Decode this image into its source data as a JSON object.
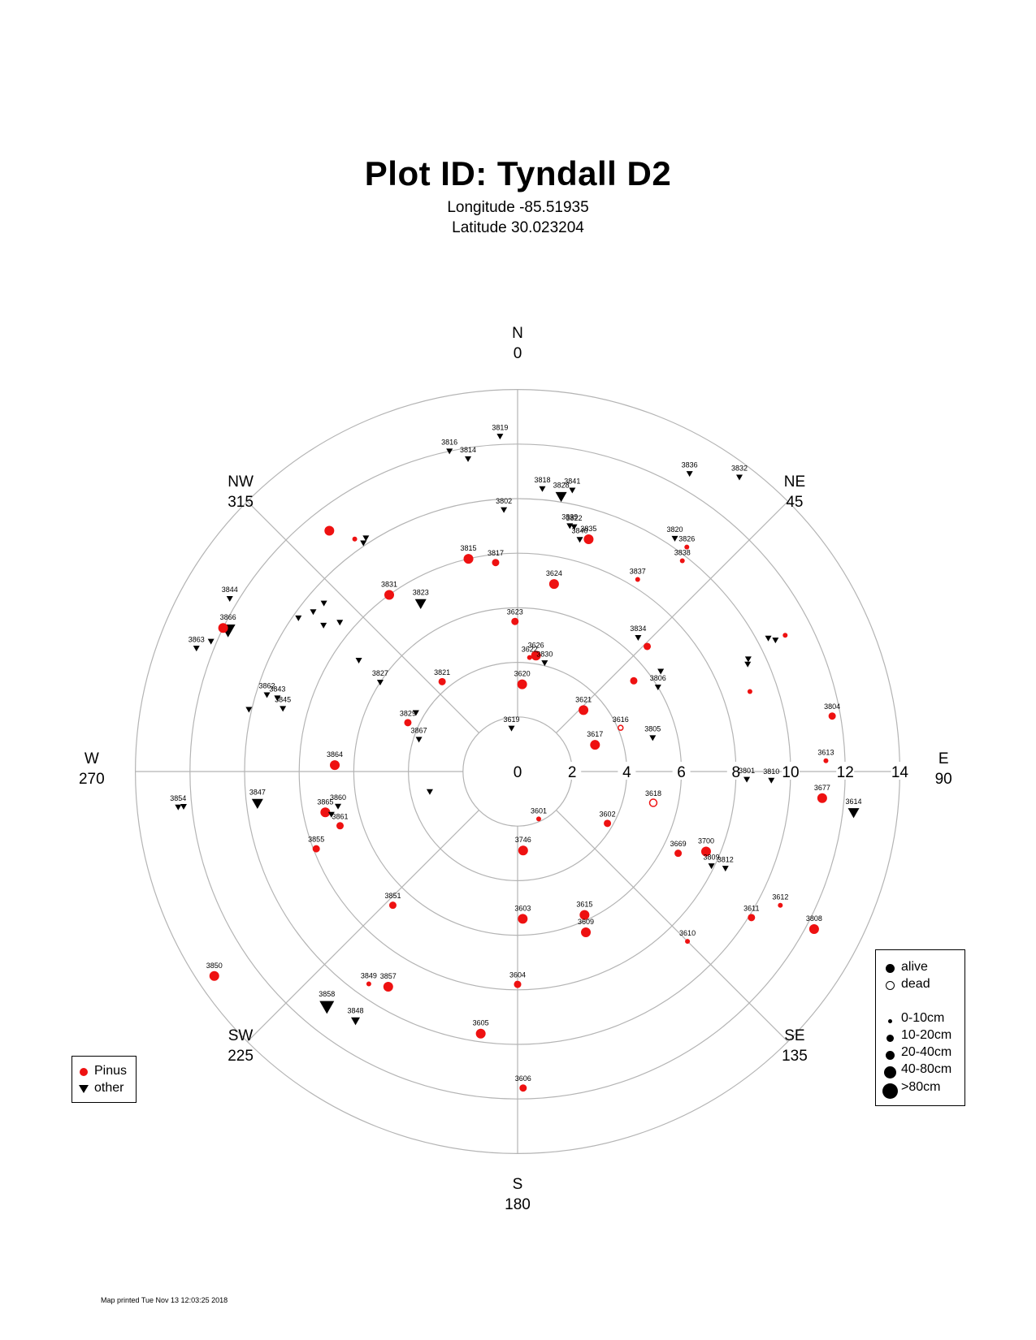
{
  "header": {
    "title": "Plot ID:  Tyndall D2",
    "longitude": "Longitude -85.51935",
    "latitude": "Latitude 30.023204"
  },
  "footer": "Map printed Tue Nov 13 12:03:25 2018",
  "colors": {
    "pinus": "#ee1111",
    "other": "#000000",
    "grid": "#b4b4b4"
  },
  "legend_species": [
    {
      "label": "Pinus",
      "symbol": "circle",
      "color": "#ee1111"
    },
    {
      "label": "other",
      "symbol": "triangle-down",
      "color": "#000000"
    }
  ],
  "legend_status": [
    {
      "label": "alive",
      "symbol": "filled-circle"
    },
    {
      "label": "dead",
      "symbol": "open-circle"
    }
  ],
  "legend_size": [
    "0-10cm",
    "10-20cm",
    "20-40cm",
    "40-80cm",
    ">80cm"
  ],
  "chart_data": {
    "type": "scatter",
    "coordinate_system": "polar",
    "radius_range": [
      0,
      14
    ],
    "radial_ticks": [
      "0",
      "2",
      "4",
      "6",
      "8",
      "10",
      "12",
      "14"
    ],
    "directions": [
      {
        "label": "N",
        "angle": "0",
        "deg": 0
      },
      {
        "label": "NE",
        "angle": "45",
        "deg": 45
      },
      {
        "label": "E",
        "angle": "90",
        "deg": 90
      },
      {
        "label": "SE",
        "angle": "135",
        "deg": 135
      },
      {
        "label": "S",
        "angle": "180",
        "deg": 180
      },
      {
        "label": "SW",
        "angle": "225",
        "deg": 225
      },
      {
        "label": "W",
        "angle": "270",
        "deg": 270
      },
      {
        "label": "NW",
        "angle": "315",
        "deg": 315
      }
    ],
    "trees": [
      {
        "id": "3619",
        "species": "other",
        "status": "alive",
        "size": 1,
        "az": 352,
        "dist": 1.6
      },
      {
        "id": "3620",
        "species": "Pinus",
        "status": "alive",
        "size": 3,
        "az": 3,
        "dist": 3.2
      },
      {
        "id": "3621",
        "species": "Pinus",
        "status": "alive",
        "size": 3,
        "az": 47,
        "dist": 3.3
      },
      {
        "id": "3617",
        "species": "Pinus",
        "status": "alive",
        "size": 3,
        "az": 71,
        "dist": 3.0
      },
      {
        "id": "3616",
        "species": "Pinus",
        "status": "dead",
        "size": 1,
        "az": 67,
        "dist": 4.1
      },
      {
        "id": "3626",
        "species": "Pinus",
        "status": "alive",
        "size": 3,
        "az": 9,
        "dist": 4.3
      },
      {
        "id": "3830",
        "species": "other",
        "status": "alive",
        "size": 1,
        "az": 14,
        "dist": 4.1
      },
      {
        "id": "3622",
        "species": "Pinus",
        "status": "alive",
        "size": 1,
        "az": 6,
        "dist": 4.2
      },
      {
        "id": "3623",
        "species": "Pinus",
        "status": "alive",
        "size": 2,
        "az": 359,
        "dist": 5.5
      },
      {
        "id": "3624",
        "species": "Pinus",
        "status": "alive",
        "size": 3,
        "az": 11,
        "dist": 7.0
      },
      {
        "id": "3821",
        "species": "Pinus",
        "status": "alive",
        "size": 2,
        "az": 320,
        "dist": 4.3
      },
      {
        "id": "3829",
        "species": "Pinus",
        "status": "alive",
        "size": 2,
        "az": 294,
        "dist": 4.4
      },
      {
        "id": "3867",
        "species": "other",
        "status": "alive",
        "size": 1,
        "az": 288,
        "dist": 3.8
      },
      {
        "id": "",
        "species": "other",
        "status": "alive",
        "size": 1,
        "az": 300,
        "dist": 4.3
      },
      {
        "id": "",
        "species": "other",
        "status": "alive",
        "size": 1,
        "az": 257,
        "dist": 3.3
      },
      {
        "id": "3601",
        "species": "Pinus",
        "status": "alive",
        "size": 1,
        "az": 156,
        "dist": 1.9
      },
      {
        "id": "3746",
        "species": "Pinus",
        "status": "alive",
        "size": 3,
        "az": 176,
        "dist": 2.9
      },
      {
        "id": "3602",
        "species": "Pinus",
        "status": "alive",
        "size": 2,
        "az": 120,
        "dist": 3.8
      },
      {
        "id": "3618",
        "species": "Pinus",
        "status": "dead",
        "size": 2,
        "az": 103,
        "dist": 5.1
      },
      {
        "id": "3805",
        "species": "other",
        "status": "alive",
        "size": 1,
        "az": 76,
        "dist": 5.1
      },
      {
        "id": "3806",
        "species": "other",
        "status": "alive",
        "size": 1,
        "az": 59,
        "dist": 6.0
      },
      {
        "id": "",
        "species": "Pinus",
        "status": "alive",
        "size": 2,
        "az": 52,
        "dist": 5.4
      },
      {
        "id": "",
        "species": "other",
        "status": "alive",
        "size": 1,
        "az": 55,
        "dist": 6.4
      },
      {
        "id": "3834",
        "species": "other",
        "status": "alive",
        "size": 1,
        "az": 42,
        "dist": 6.6
      },
      {
        "id": "",
        "species": "Pinus",
        "status": "alive",
        "size": 2,
        "az": 46,
        "dist": 6.6
      },
      {
        "id": "3837",
        "species": "Pinus",
        "status": "alive",
        "size": 1,
        "az": 32,
        "dist": 8.3
      },
      {
        "id": "3815",
        "species": "Pinus",
        "status": "alive",
        "size": 3,
        "az": 347,
        "dist": 8.0
      },
      {
        "id": "3817",
        "species": "Pinus",
        "status": "alive",
        "size": 2,
        "az": 354,
        "dist": 7.7
      },
      {
        "id": "3802",
        "species": "other",
        "status": "alive",
        "size": 1,
        "az": 357,
        "dist": 9.6
      },
      {
        "id": "3831",
        "species": "Pinus",
        "status": "alive",
        "size": 3,
        "az": 324,
        "dist": 8.0
      },
      {
        "id": "3823",
        "species": "other",
        "status": "alive",
        "size": 3,
        "az": 330,
        "dist": 7.1
      },
      {
        "id": "3827",
        "species": "other",
        "status": "alive",
        "size": 1,
        "az": 303,
        "dist": 6.0
      },
      {
        "id": "",
        "species": "other",
        "status": "alive",
        "size": 1,
        "az": 305,
        "dist": 7.1
      },
      {
        "id": "",
        "species": "other",
        "status": "alive",
        "size": 1,
        "az": 310,
        "dist": 8.5
      },
      {
        "id": "",
        "species": "other",
        "status": "alive",
        "size": 1,
        "az": 307,
        "dist": 8.9
      },
      {
        "id": "",
        "species": "other",
        "status": "alive",
        "size": 1,
        "az": 308,
        "dist": 9.5
      },
      {
        "id": "",
        "species": "other",
        "status": "alive",
        "size": 1,
        "az": 305,
        "dist": 9.8
      },
      {
        "id": "",
        "species": "other",
        "status": "alive",
        "size": 1,
        "az": 311,
        "dist": 9.4
      },
      {
        "id": "",
        "species": "Pinus",
        "status": "alive",
        "size": 1,
        "az": 325,
        "dist": 10.4
      },
      {
        "id": "",
        "species": "other",
        "status": "alive",
        "size": 1,
        "az": 326,
        "dist": 10.1
      },
      {
        "id": "",
        "species": "other",
        "status": "alive",
        "size": 1,
        "az": 327,
        "dist": 10.2
      },
      {
        "id": "",
        "species": "Pinus",
        "status": "alive",
        "size": 3,
        "az": 322,
        "dist": 11.2
      },
      {
        "id": "3864",
        "species": "Pinus",
        "status": "alive",
        "size": 3,
        "az": 272,
        "dist": 6.7
      },
      {
        "id": "3865",
        "species": "Pinus",
        "status": "alive",
        "size": 3,
        "az": 258,
        "dist": 7.2
      },
      {
        "id": "3860",
        "species": "other",
        "status": "alive",
        "size": 1,
        "az": 259,
        "dist": 6.7
      },
      {
        "id": "",
        "species": "other",
        "status": "alive",
        "size": 1,
        "az": 257,
        "dist": 7.0
      },
      {
        "id": "3861",
        "species": "Pinus",
        "status": "alive",
        "size": 2,
        "az": 253,
        "dist": 6.8
      },
      {
        "id": "3855",
        "species": "Pinus",
        "status": "alive",
        "size": 2,
        "az": 249,
        "dist": 7.9
      },
      {
        "id": "3862",
        "species": "other",
        "status": "alive",
        "size": 1,
        "az": 287,
        "dist": 9.6
      },
      {
        "id": "3845",
        "species": "other",
        "status": "alive",
        "size": 1,
        "az": 285,
        "dist": 8.9
      },
      {
        "id": "3843",
        "species": "other",
        "status": "alive",
        "size": 1,
        "az": 287,
        "dist": 9.2
      },
      {
        "id": "",
        "species": "other",
        "status": "alive",
        "size": 1,
        "az": 283,
        "dist": 10.1
      },
      {
        "id": "3866",
        "species": "other",
        "status": "alive",
        "size": 4,
        "az": 296,
        "dist": 11.8
      },
      {
        "id": "",
        "species": "Pinus",
        "status": "alive",
        "size": 3,
        "az": 296,
        "dist": 12.0
      },
      {
        "id": "",
        "species": "other",
        "status": "alive",
        "size": 1,
        "az": 293,
        "dist": 12.2
      },
      {
        "id": "3863",
        "species": "other",
        "status": "alive",
        "size": 1,
        "az": 291,
        "dist": 12.6
      },
      {
        "id": "3844",
        "species": "other",
        "status": "alive",
        "size": 1,
        "az": 301,
        "dist": 12.3
      },
      {
        "id": "3847",
        "species": "other",
        "status": "alive",
        "size": 3,
        "az": 263,
        "dist": 9.6
      },
      {
        "id": "3854",
        "species": "other",
        "status": "alive",
        "size": 1,
        "az": 264,
        "dist": 12.5
      },
      {
        "id": "",
        "species": "other",
        "status": "alive",
        "size": 1,
        "az": 264,
        "dist": 12.3
      },
      {
        "id": "3850",
        "species": "Pinus",
        "status": "alive",
        "size": 3,
        "az": 236,
        "dist": 13.4
      },
      {
        "id": "3851",
        "species": "Pinus",
        "status": "alive",
        "size": 2,
        "az": 223,
        "dist": 6.7
      },
      {
        "id": "3857",
        "species": "Pinus",
        "status": "alive",
        "size": 3,
        "az": 211,
        "dist": 9.2
      },
      {
        "id": "3849",
        "species": "Pinus",
        "status": "alive",
        "size": 1,
        "az": 215,
        "dist": 9.5
      },
      {
        "id": "3848",
        "species": "other",
        "status": "alive",
        "size": 2,
        "az": 213,
        "dist": 10.9
      },
      {
        "id": "3858",
        "species": "other",
        "status": "alive",
        "size": 4,
        "az": 219,
        "dist": 11.1
      },
      {
        "id": "3603",
        "species": "Pinus",
        "status": "alive",
        "size": 3,
        "az": 178,
        "dist": 5.4
      },
      {
        "id": "3615",
        "species": "Pinus",
        "status": "alive",
        "size": 3,
        "az": 155,
        "dist": 5.8
      },
      {
        "id": "3609",
        "species": "Pinus",
        "status": "alive",
        "size": 3,
        "az": 157,
        "dist": 6.4
      },
      {
        "id": "3604",
        "species": "Pinus",
        "status": "alive",
        "size": 2,
        "az": 180,
        "dist": 7.8
      },
      {
        "id": "3605",
        "species": "Pinus",
        "status": "alive",
        "size": 3,
        "az": 188,
        "dist": 9.7
      },
      {
        "id": "3606",
        "species": "Pinus",
        "status": "alive",
        "size": 2,
        "az": 179,
        "dist": 11.6
      },
      {
        "id": "3669",
        "species": "Pinus",
        "status": "alive",
        "size": 2,
        "az": 117,
        "dist": 6.6
      },
      {
        "id": "3700",
        "species": "Pinus",
        "status": "alive",
        "size": 3,
        "az": 113,
        "dist": 7.5
      },
      {
        "id": "3809",
        "species": "other",
        "status": "alive",
        "size": 1,
        "az": 116,
        "dist": 7.9
      },
      {
        "id": "3812",
        "species": "other",
        "status": "alive",
        "size": 1,
        "az": 115,
        "dist": 8.4
      },
      {
        "id": "3610",
        "species": "Pinus",
        "status": "alive",
        "size": 1,
        "az": 135,
        "dist": 8.8
      },
      {
        "id": "3611",
        "species": "Pinus",
        "status": "alive",
        "size": 2,
        "az": 122,
        "dist": 10.1
      },
      {
        "id": "3612",
        "species": "Pinus",
        "status": "alive",
        "size": 1,
        "az": 117,
        "dist": 10.8
      },
      {
        "id": "3808",
        "species": "Pinus",
        "status": "alive",
        "size": 3,
        "az": 118,
        "dist": 12.3
      },
      {
        "id": "3801",
        "species": "other",
        "status": "alive",
        "size": 1,
        "az": 92,
        "dist": 8.4
      },
      {
        "id": "3810",
        "species": "other",
        "status": "alive",
        "size": 1,
        "az": 92,
        "dist": 9.3
      },
      {
        "id": "3613",
        "species": "Pinus",
        "status": "alive",
        "size": 1,
        "az": 88,
        "dist": 11.3
      },
      {
        "id": "3677",
        "species": "Pinus",
        "status": "alive",
        "size": 3,
        "az": 95,
        "dist": 11.2
      },
      {
        "id": "3804",
        "species": "Pinus",
        "status": "alive",
        "size": 2,
        "az": 80,
        "dist": 11.7
      },
      {
        "id": "3614",
        "species": "other",
        "status": "alive",
        "size": 3,
        "az": 97,
        "dist": 12.4
      },
      {
        "id": "",
        "species": "Pinus",
        "status": "alive",
        "size": 1,
        "az": 71,
        "dist": 9.0
      },
      {
        "id": "",
        "species": "other",
        "status": "alive",
        "size": 1,
        "az": 65,
        "dist": 9.3
      },
      {
        "id": "",
        "species": "other",
        "status": "alive",
        "size": 1,
        "az": 64,
        "dist": 9.4
      },
      {
        "id": "",
        "species": "other",
        "status": "alive",
        "size": 1,
        "az": 62,
        "dist": 10.4
      },
      {
        "id": "",
        "species": "other",
        "status": "alive",
        "size": 1,
        "az": 63,
        "dist": 10.6
      },
      {
        "id": "",
        "species": "Pinus",
        "status": "alive",
        "size": 1,
        "az": 63,
        "dist": 11.0
      },
      {
        "id": "3826",
        "species": "Pinus",
        "status": "alive",
        "size": 1,
        "az": 37,
        "dist": 10.3
      },
      {
        "id": "3838",
        "species": "Pinus",
        "status": "alive",
        "size": 1,
        "az": 38,
        "dist": 9.8
      },
      {
        "id": "3820",
        "species": "other",
        "status": "alive",
        "size": 1,
        "az": 34,
        "dist": 10.3
      },
      {
        "id": "3836",
        "species": "other",
        "status": "alive",
        "size": 1,
        "az": 30,
        "dist": 12.6
      },
      {
        "id": "3832",
        "species": "other",
        "status": "alive",
        "size": 1,
        "az": 37,
        "dist": 13.5
      },
      {
        "id": "3835",
        "species": "Pinus",
        "status": "alive",
        "size": 3,
        "az": 17,
        "dist": 8.9
      },
      {
        "id": "3840",
        "species": "other",
        "status": "alive",
        "size": 1,
        "az": 15,
        "dist": 8.8
      },
      {
        "id": "3822",
        "species": "other",
        "status": "alive",
        "size": 1,
        "az": 13,
        "dist": 9.2
      },
      {
        "id": "3839",
        "species": "other",
        "status": "alive",
        "size": 1,
        "az": 12,
        "dist": 9.2
      },
      {
        "id": "3818",
        "species": "other",
        "status": "alive",
        "size": 1,
        "az": 5,
        "dist": 10.4
      },
      {
        "id": "3841",
        "species": "other",
        "status": "alive",
        "size": 1,
        "az": 11,
        "dist": 10.5
      },
      {
        "id": "3828",
        "species": "other",
        "status": "alive",
        "size": 3,
        "az": 9,
        "dist": 10.2
      },
      {
        "id": "3819",
        "species": "other",
        "status": "alive",
        "size": 1,
        "az": 357,
        "dist": 12.3
      },
      {
        "id": "3816",
        "species": "other",
        "status": "alive",
        "size": 1,
        "az": 348,
        "dist": 12.0
      },
      {
        "id": "3814",
        "species": "other",
        "status": "alive",
        "size": 1,
        "az": 351,
        "dist": 11.6
      }
    ]
  }
}
